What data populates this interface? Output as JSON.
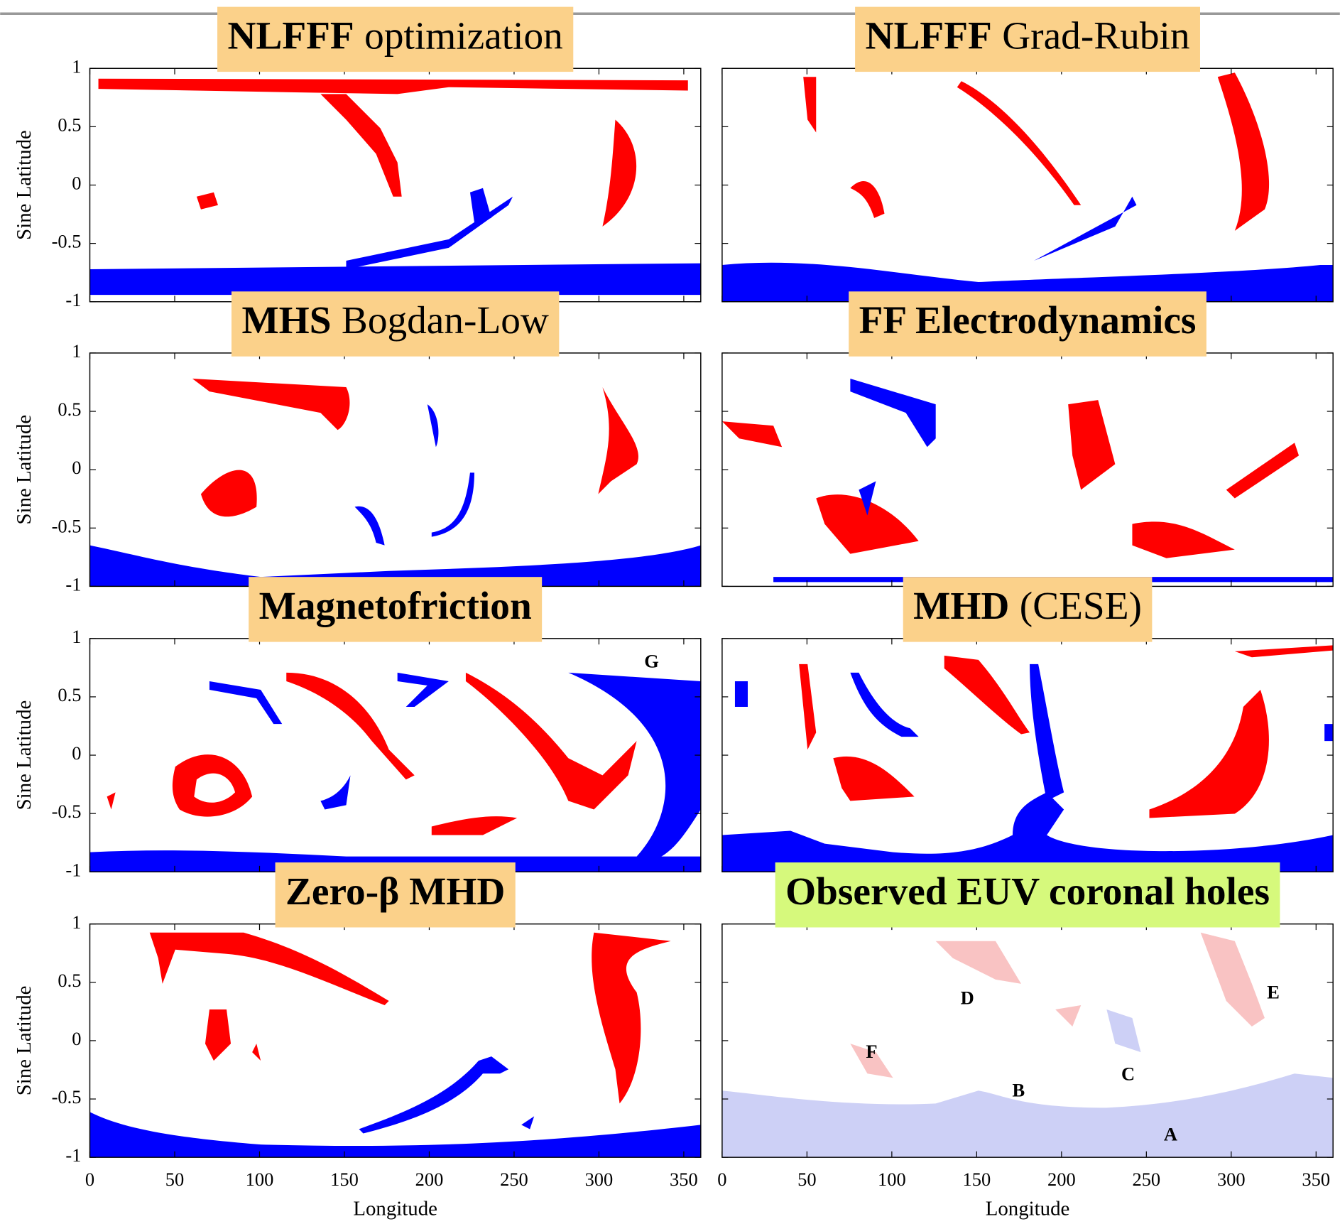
{
  "chart_data": [
    {
      "type": "map",
      "title": [
        {
          "text": "NLFFF",
          "bold": true
        },
        {
          "text": "optimization",
          "bold": false
        }
      ],
      "title_color": "#fbd18a",
      "ylabel": "Sine Latitude",
      "xlim": [
        0,
        360
      ],
      "ylim": [
        -1,
        1
      ],
      "xticks": [
        0,
        50,
        100,
        150,
        200,
        250,
        300,
        350
      ],
      "yticks": [
        -1,
        -0.5,
        0,
        0.5,
        1
      ]
    },
    {
      "type": "map",
      "title": [
        {
          "text": "NLFFF",
          "bold": true
        },
        {
          "text": "Grad-Rubin",
          "bold": false
        }
      ],
      "title_color": "#fbd18a",
      "xlim": [
        0,
        360
      ],
      "ylim": [
        -1,
        1
      ],
      "xticks": [
        0,
        50,
        100,
        150,
        200,
        250,
        300,
        350
      ],
      "yticks": [
        -1,
        -0.5,
        0,
        0.5,
        1
      ]
    },
    {
      "type": "map",
      "title": [
        {
          "text": "MHS",
          "bold": true
        },
        {
          "text": "Bogdan-Low",
          "bold": false
        }
      ],
      "title_color": "#fbd18a",
      "ylabel": "Sine Latitude",
      "xlim": [
        0,
        360
      ],
      "ylim": [
        -1,
        1
      ],
      "xticks": [
        0,
        50,
        100,
        150,
        200,
        250,
        300,
        350
      ],
      "yticks": [
        -1,
        -0.5,
        0,
        0.5,
        1
      ]
    },
    {
      "type": "map",
      "title": [
        {
          "text": "FF Electrodynamics",
          "bold": true
        }
      ],
      "title_color": "#fbd18a",
      "xlim": [
        0,
        360
      ],
      "ylim": [
        -1,
        1
      ],
      "xticks": [
        0,
        50,
        100,
        150,
        200,
        250,
        300,
        350
      ],
      "yticks": [
        -1,
        -0.5,
        0,
        0.5,
        1
      ]
    },
    {
      "type": "map",
      "title": [
        {
          "text": "Magnetofriction",
          "bold": true
        }
      ],
      "title_color": "#fbd18a",
      "ylabel": "Sine Latitude",
      "xlim": [
        0,
        360
      ],
      "ylim": [
        -1,
        1
      ],
      "xticks": [
        0,
        50,
        100,
        150,
        200,
        250,
        300,
        350
      ],
      "yticks": [
        -1,
        -0.5,
        0,
        0.5,
        1
      ],
      "annotations": [
        {
          "text": "G",
          "x": 331,
          "y": 0.79
        }
      ]
    },
    {
      "type": "map",
      "title": [
        {
          "text": "MHD",
          "bold": true
        },
        {
          "text": "(CESE)",
          "bold": false
        }
      ],
      "title_color": "#fbd18a",
      "xlim": [
        0,
        360
      ],
      "ylim": [
        -1,
        1
      ],
      "xticks": [
        0,
        50,
        100,
        150,
        200,
        250,
        300,
        350
      ],
      "yticks": [
        -1,
        -0.5,
        0,
        0.5,
        1
      ]
    },
    {
      "type": "map",
      "title": [
        {
          "text": "Zero-β MHD",
          "bold": true
        }
      ],
      "title_color": "#fbd18a",
      "ylabel": "Sine Latitude",
      "xlabel": "Longitude",
      "xlim": [
        0,
        360
      ],
      "ylim": [
        -1,
        1
      ],
      "xticks": [
        0,
        50,
        100,
        150,
        200,
        250,
        300,
        350
      ],
      "yticks": [
        -1,
        -0.5,
        0,
        0.5,
        1
      ]
    },
    {
      "type": "map",
      "title": [
        {
          "text": "Observed EUV coronal holes",
          "bold": true
        }
      ],
      "title_color": "#d6f97c",
      "xlabel": "Longitude",
      "xlim": [
        0,
        360
      ],
      "ylim": [
        -1,
        1
      ],
      "xticks": [
        0,
        50,
        100,
        150,
        200,
        250,
        300,
        350
      ],
      "yticks": [
        -1,
        -0.5,
        0,
        0.5,
        1
      ],
      "annotations": [
        {
          "text": "D",
          "x": 144.5,
          "y": 0.35
        },
        {
          "text": "E",
          "x": 324.8,
          "y": 0.4
        },
        {
          "text": "F",
          "x": 88.1,
          "y": -0.11
        },
        {
          "text": "C",
          "x": 239.2,
          "y": -0.3
        },
        {
          "text": "B",
          "x": 174.7,
          "y": -0.44
        },
        {
          "text": "A",
          "x": 264.3,
          "y": -0.82
        }
      ]
    }
  ]
}
